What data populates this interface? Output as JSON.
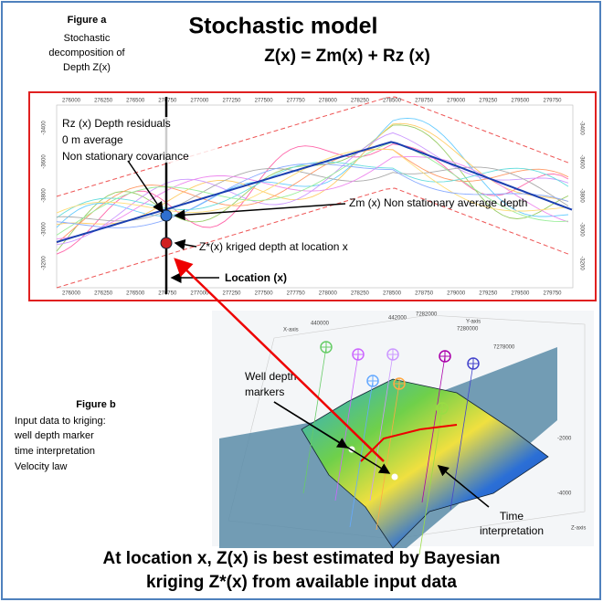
{
  "figure_a": {
    "label": "Figure a",
    "caption": [
      "Stochastic",
      "decomposition of",
      "Depth Z(x)"
    ]
  },
  "header": {
    "title": "Stochastic model",
    "equation": "Z(x) = Zm(x) + Rz (x)"
  },
  "profile": {
    "x_axis_labels": [
      "276000",
      "276250",
      "276500",
      "276750",
      "277000",
      "277250",
      "277500",
      "277750",
      "278000",
      "278250",
      "278500",
      "278750",
      "279000",
      "279250",
      "279500",
      "279750"
    ],
    "y_axis_labels": [
      "-3400",
      "-3600",
      "-3800",
      "-3000",
      "-3200"
    ],
    "residuals_note": [
      "Rz (x) Depth residuals",
      "0 m average",
      "Non stationary covariance"
    ],
    "average_label": "Zm (x) Non stationary  average depth",
    "kriged_label": "Z*(x) kriged depth at location x",
    "location_label": "Location (x)"
  },
  "figure_b": {
    "label": "Figure b",
    "caption": [
      "Input data to  kriging:",
      "well depth marker",
      "time interpretation",
      "Velocity law"
    ]
  },
  "scene": {
    "x_axis": "X-axis",
    "y_axis": "Y-axis",
    "z_axis": "Z-axis",
    "ticks": [
      "440000",
      "442000",
      "7282000",
      "7280000",
      "7278000",
      "-2000",
      "-4000"
    ],
    "well_label": [
      "Well depth",
      "markers"
    ],
    "time_label": [
      "Time",
      "interpretation"
    ]
  },
  "footer": [
    "At location x,  Z(x) is best estimated by  Bayesian",
    "kriging Z*(x) from available input data"
  ]
}
